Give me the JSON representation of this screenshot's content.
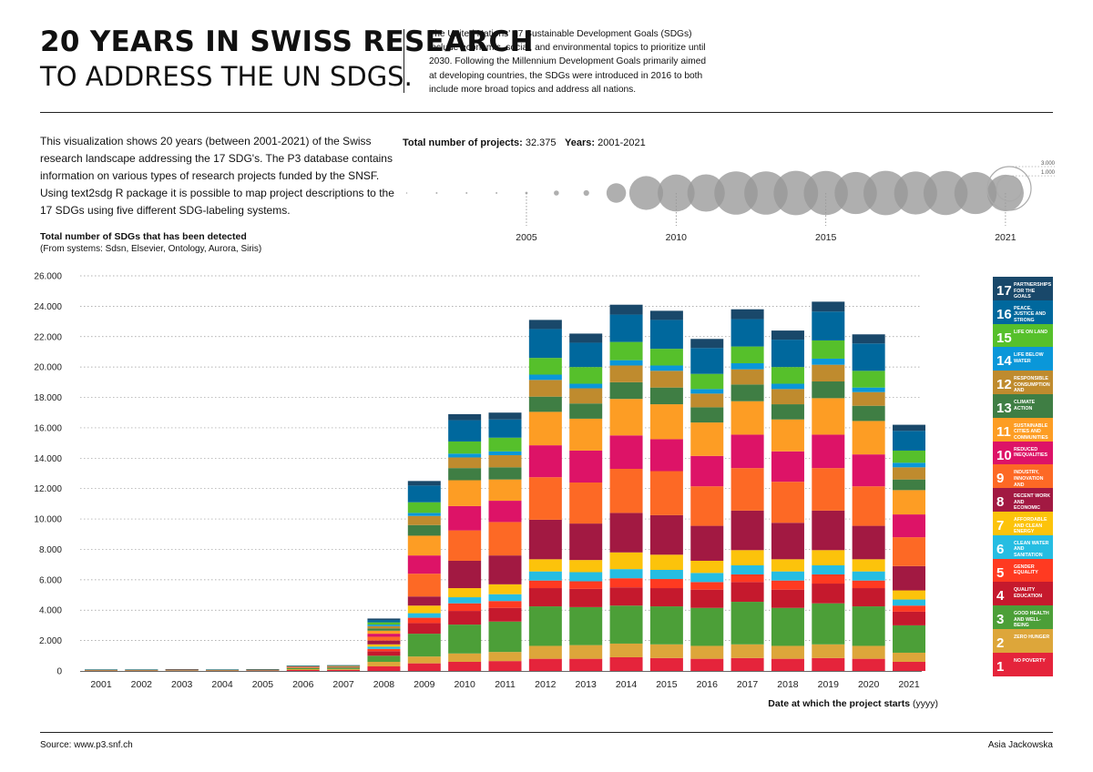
{
  "header": {
    "title_line1": "20 YEARS IN SWISS RESEARCH",
    "title_line2": "TO ADDRESS THE UN SDGS.",
    "intro": "The United Nations' 17 Sustainable Development Goals (SDGs) include economic, social, and environmental topics to prioritize until 2030. Following the Millennium Development Goals primarily aimed at developing countries, the SDGs were introduced in 2016 to both include more broad topics and address all nations."
  },
  "description": "This visualization shows 20 years (between 2001-2021) of the Swiss research landscape addressing the 17 SDG's. The P3 database contains information on various types of research projects funded by the SNSF. Using text2sdg R package it is possible to map project descriptions to the 17 SDGs using five different SDG-labeling systems.",
  "stats": {
    "total_label": "Total number of projects:",
    "total_value": "32.375",
    "years_label": "Years:",
    "years_value": "2001-2021"
  },
  "footer": {
    "source": "Source: www.p3.snf.ch",
    "author": "Asia Jackowska"
  },
  "legend_colors": [
    "#E5243B",
    "#DDA63A",
    "#4C9F38",
    "#C5192D",
    "#FF3A21",
    "#26BDE2",
    "#FCC30B",
    "#A21942",
    "#FD6925",
    "#DD1367",
    "#FD9D24",
    "#3F7E44",
    "#BF8B2E",
    "#0A97D9",
    "#56C02B",
    "#00689D",
    "#19486A"
  ],
  "sdg_legend": [
    {
      "num": "1",
      "label": "NO POVERTY"
    },
    {
      "num": "2",
      "label": "ZERO HUNGER"
    },
    {
      "num": "3",
      "label": "GOOD HEALTH AND WELL-BEING"
    },
    {
      "num": "4",
      "label": "QUALITY EDUCATION"
    },
    {
      "num": "5",
      "label": "GENDER EQUALITY"
    },
    {
      "num": "6",
      "label": "CLEAN WATER AND SANITATION"
    },
    {
      "num": "7",
      "label": "AFFORDABLE AND CLEAN ENERGY"
    },
    {
      "num": "8",
      "label": "DECENT WORK AND ECONOMIC GROWTH"
    },
    {
      "num": "9",
      "label": "INDUSTRY, INNOVATION AND INFRASTRUCTURE"
    },
    {
      "num": "10",
      "label": "REDUCED INEQUALITIES"
    },
    {
      "num": "11",
      "label": "SUSTAINABLE CITIES AND COMMUNITIES"
    },
    {
      "num": "13",
      "label": "CLIMATE ACTION"
    },
    {
      "num": "12",
      "label": "RESPONSIBLE CONSUMPTION AND PRODUCTION"
    },
    {
      "num": "14",
      "label": "LIFE BELOW WATER"
    },
    {
      "num": "15",
      "label": "LIFE ON LAND"
    },
    {
      "num": "16",
      "label": "PEACE, JUSTICE AND STRONG INSTITUTIONS"
    },
    {
      "num": "17",
      "label": "PARTNERSHIPS FOR THE GOALS"
    }
  ],
  "chart_data": [
    {
      "type": "bar",
      "stacked": true,
      "title": "Total number of SDGs that has been detected",
      "subtitle": "(From systems: Sdsn, Elsevier, Ontology, Aurora, Siris)",
      "xlabel": "Date at which the project starts",
      "xlabel_unit": "(yyyy)",
      "ylim": [
        0,
        26000
      ],
      "yticks": [
        0,
        2000,
        4000,
        6000,
        8000,
        10000,
        12000,
        14000,
        16000,
        18000,
        20000,
        22000,
        24000,
        26000
      ],
      "ytick_labels": [
        "0",
        "2.000",
        "4.000",
        "6.000",
        "8.000",
        "10.000",
        "12.000",
        "14.000",
        "16.000",
        "18.000",
        "20.000",
        "22.000",
        "24.000",
        "26.000"
      ],
      "categories": [
        "2001",
        "2002",
        "2003",
        "2004",
        "2005",
        "2006",
        "2007",
        "2008",
        "2009",
        "2010",
        "2011",
        "2012",
        "2013",
        "2014",
        "2015",
        "2016",
        "2017",
        "2018",
        "2019",
        "2020",
        "2021"
      ],
      "series": [
        {
          "name": "SDG 1 No poverty",
          "values": [
            15,
            15,
            20,
            15,
            20,
            60,
            70,
            300,
            500,
            600,
            650,
            800,
            800,
            900,
            850,
            800,
            850,
            800,
            850,
            800,
            600
          ]
        },
        {
          "name": "SDG 2 Zero hunger",
          "values": [
            10,
            10,
            25,
            10,
            20,
            60,
            60,
            300,
            450,
            550,
            600,
            850,
            900,
            900,
            900,
            850,
            900,
            850,
            900,
            850,
            600
          ]
        },
        {
          "name": "SDG 3 Good health and well-being",
          "values": [
            25,
            25,
            25,
            25,
            25,
            70,
            80,
            400,
            1500,
            1900,
            2000,
            2600,
            2500,
            2500,
            2500,
            2500,
            2800,
            2500,
            2700,
            2600,
            1800
          ]
        },
        {
          "name": "SDG 4 Quality education",
          "values": [
            5,
            5,
            5,
            5,
            5,
            20,
            20,
            300,
            700,
            900,
            900,
            1200,
            1200,
            1200,
            1200,
            1200,
            1300,
            1200,
            1300,
            1200,
            900
          ]
        },
        {
          "name": "SDG 5 Gender equality",
          "values": [
            3,
            3,
            3,
            3,
            3,
            10,
            10,
            150,
            350,
            500,
            450,
            500,
            500,
            600,
            600,
            500,
            500,
            600,
            600,
            500,
            400
          ]
        },
        {
          "name": "SDG 6 Clean water and sanitation",
          "values": [
            3,
            3,
            3,
            3,
            3,
            10,
            10,
            150,
            300,
            400,
            450,
            600,
            600,
            600,
            600,
            600,
            600,
            600,
            600,
            600,
            400
          ]
        },
        {
          "name": "SDG 7 Affordable and clean energy",
          "values": [
            3,
            3,
            3,
            3,
            3,
            10,
            10,
            150,
            500,
            600,
            650,
            800,
            800,
            1100,
            1000,
            800,
            1000,
            800,
            1000,
            800,
            600
          ]
        },
        {
          "name": "SDG 8 Decent work and economic growth",
          "values": [
            5,
            5,
            5,
            5,
            5,
            20,
            20,
            250,
            600,
            1800,
            1900,
            2600,
            2400,
            2600,
            2600,
            2300,
            2600,
            2400,
            2600,
            2200,
            1600
          ]
        },
        {
          "name": "SDG 9 Industry, innovation and infrastructure",
          "values": [
            5,
            5,
            5,
            5,
            5,
            20,
            20,
            250,
            1500,
            2000,
            2200,
            2800,
            2700,
            2900,
            2900,
            2600,
            2800,
            2700,
            2800,
            2600,
            1900
          ]
        },
        {
          "name": "SDG 10 Reduced inequalities",
          "values": [
            3,
            3,
            3,
            3,
            3,
            10,
            10,
            200,
            1200,
            1600,
            1400,
            2100,
            2100,
            2200,
            2100,
            2000,
            2200,
            2000,
            2200,
            2100,
            1500
          ]
        },
        {
          "name": "SDG 11 Sustainable cities and communities",
          "values": [
            3,
            3,
            3,
            3,
            3,
            15,
            15,
            200,
            1300,
            1700,
            1400,
            2200,
            2100,
            2400,
            2300,
            2200,
            2200,
            2100,
            2400,
            2200,
            1600
          ]
        },
        {
          "name": "SDG 12 Responsible consumption and production",
          "values": [
            3,
            3,
            3,
            3,
            3,
            10,
            10,
            150,
            700,
            800,
            800,
            1000,
            1000,
            1100,
            1100,
            1000,
            1100,
            1000,
            1100,
            1000,
            700
          ]
        },
        {
          "name": "SDG 13 Climate action",
          "values": [
            3,
            3,
            3,
            3,
            3,
            10,
            10,
            150,
            600,
            700,
            800,
            1100,
            1000,
            1100,
            1100,
            900,
            1000,
            1000,
            1100,
            900,
            800
          ]
        },
        {
          "name": "SDG 14 Life below water",
          "values": [
            2,
            2,
            2,
            2,
            2,
            5,
            5,
            100,
            200,
            250,
            250,
            350,
            300,
            350,
            350,
            300,
            400,
            350,
            400,
            300,
            300
          ]
        },
        {
          "name": "SDG 15 Life on land",
          "values": [
            3,
            3,
            3,
            3,
            3,
            10,
            10,
            150,
            700,
            800,
            900,
            1100,
            1100,
            1200,
            1100,
            1000,
            1100,
            1100,
            1200,
            1100,
            800
          ]
        },
        {
          "name": "SDG 16 Peace, justice and strong institutions",
          "values": [
            3,
            3,
            3,
            3,
            3,
            10,
            10,
            150,
            1100,
            1400,
            1200,
            1900,
            1600,
            1800,
            1900,
            1700,
            1800,
            1800,
            1900,
            1800,
            1300
          ]
        },
        {
          "name": "SDG 17 Partnerships for the goals",
          "values": [
            2,
            2,
            2,
            2,
            2,
            5,
            5,
            100,
            300,
            400,
            450,
            600,
            600,
            650,
            600,
            600,
            650,
            600,
            650,
            600,
            400
          ]
        }
      ]
    },
    {
      "type": "scatter",
      "title": "Total number of projects per year (bubble size)",
      "x": [
        2001,
        2002,
        2003,
        2004,
        2005,
        2006,
        2007,
        2008,
        2009,
        2010,
        2011,
        2012,
        2013,
        2014,
        2015,
        2016,
        2017,
        2018,
        2019,
        2020,
        2021
      ],
      "sizes": [
        3,
        5,
        5,
        5,
        10,
        40,
        50,
        600,
        1800,
        2150,
        2200,
        2950,
        2950,
        3100,
        3050,
        2800,
        3100,
        2900,
        3050,
        2800,
        2100
      ],
      "xticks": [
        2005,
        2010,
        2015,
        2021
      ],
      "size_legend": [
        "3.000",
        "1.000"
      ],
      "size_legend_values": [
        3000,
        1000
      ]
    }
  ]
}
